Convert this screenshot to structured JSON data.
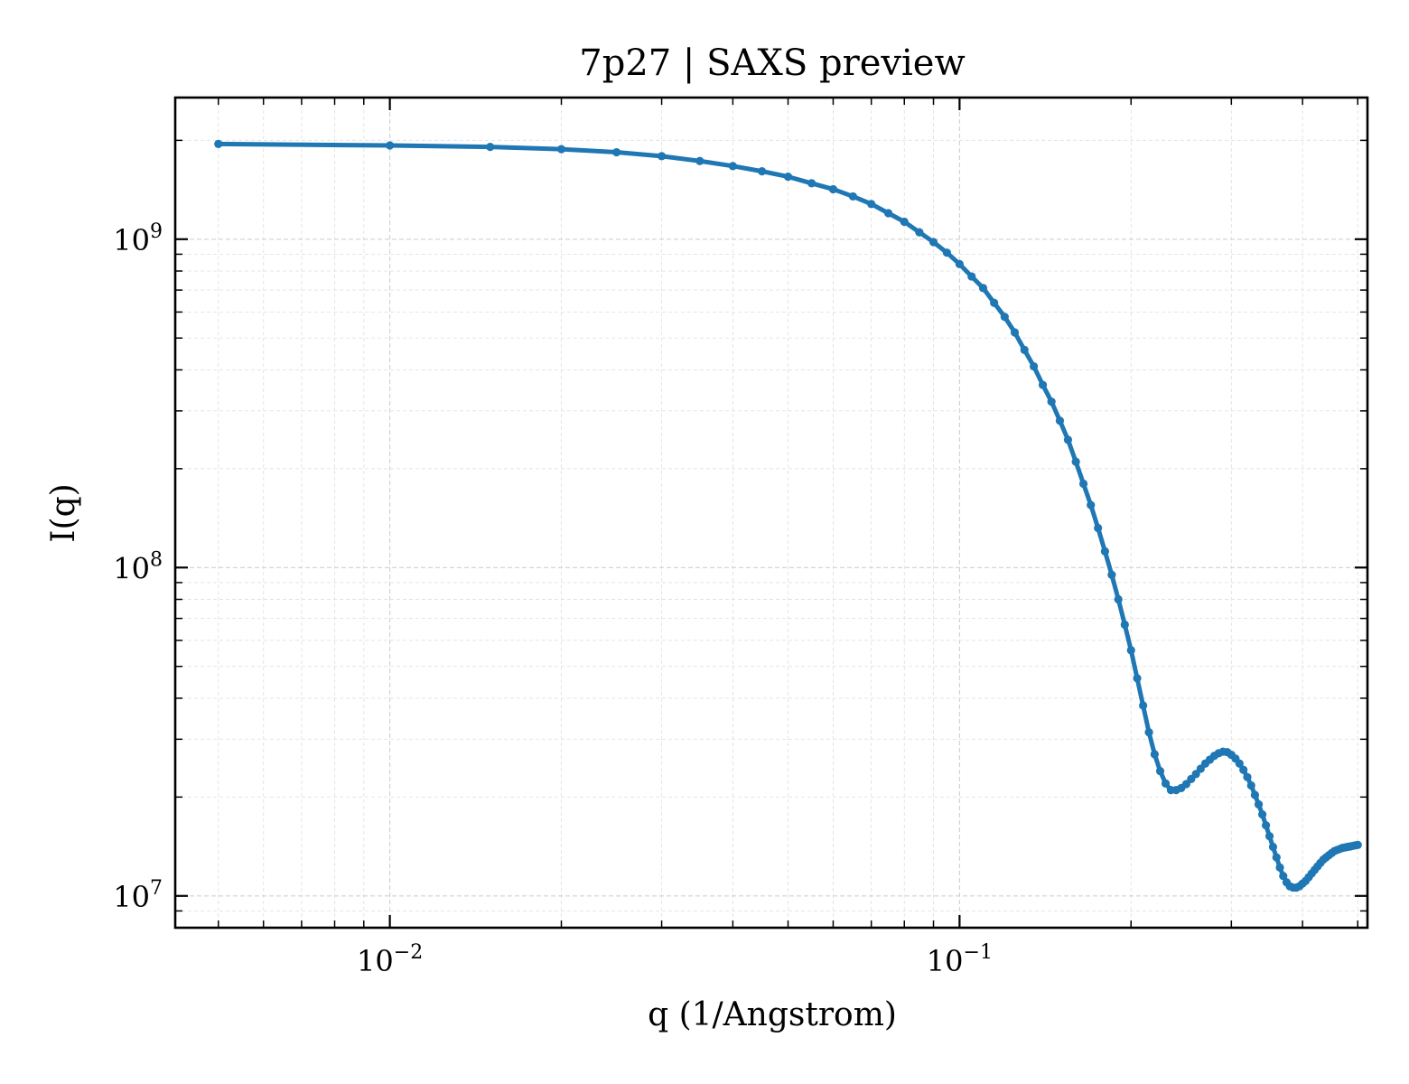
{
  "chart_data": {
    "type": "line",
    "title": "7p27 | SAXS preview",
    "xlabel": "q (1/Angstrom)",
    "ylabel": "I(q)",
    "xscale": "log",
    "yscale": "log",
    "xlim": [
      0.0042,
      0.52
    ],
    "ylim": [
      8000000,
      2700000000
    ],
    "grid": true,
    "x_ticks": [
      {
        "value": 0.01,
        "base": "10",
        "exp": "−2"
      },
      {
        "value": 0.1,
        "base": "10",
        "exp": "−1"
      }
    ],
    "y_ticks": [
      {
        "value": 10000000,
        "base": "10",
        "exp": "7"
      },
      {
        "value": 100000000,
        "base": "10",
        "exp": "8"
      },
      {
        "value": 1000000000,
        "base": "10",
        "exp": "9"
      }
    ],
    "series": [
      {
        "color": "#1f77b4",
        "marker": "circle",
        "x": [
          0.005,
          0.01,
          0.015,
          0.02,
          0.025,
          0.03,
          0.035,
          0.04,
          0.045,
          0.05,
          0.055,
          0.06,
          0.065,
          0.07,
          0.075,
          0.08,
          0.085,
          0.09,
          0.095,
          0.1,
          0.105,
          0.11,
          0.115,
          0.12,
          0.125,
          0.13,
          0.135,
          0.14,
          0.145,
          0.15,
          0.155,
          0.16,
          0.165,
          0.17,
          0.175,
          0.18,
          0.185,
          0.19,
          0.195,
          0.2,
          0.205,
          0.21,
          0.215,
          0.22,
          0.225,
          0.23,
          0.235,
          0.24,
          0.245,
          0.25,
          0.255,
          0.26,
          0.265,
          0.27,
          0.275,
          0.28,
          0.285,
          0.29,
          0.295,
          0.3,
          0.305,
          0.31,
          0.315,
          0.32,
          0.325,
          0.33,
          0.335,
          0.34,
          0.345,
          0.35,
          0.355,
          0.36,
          0.365,
          0.37,
          0.375,
          0.38,
          0.385,
          0.39,
          0.395,
          0.4,
          0.405,
          0.41,
          0.415,
          0.42,
          0.425,
          0.43,
          0.435,
          0.44,
          0.445,
          0.45,
          0.455,
          0.46,
          0.465,
          0.47,
          0.475,
          0.48,
          0.485,
          0.49,
          0.495,
          0.5
        ],
        "y": [
          1950000000,
          1930000000,
          1910000000,
          1880000000,
          1840000000,
          1790000000,
          1730000000,
          1670000000,
          1610000000,
          1550000000,
          1480000000,
          1420000000,
          1350000000,
          1280000000,
          1200000000,
          1130000000,
          1050000000,
          980000000,
          910000000,
          840000000,
          770000000,
          710000000,
          640000000,
          580000000,
          520000000,
          460000000,
          410000000,
          360000000,
          320000000,
          280000000,
          245000000,
          210000000,
          180000000,
          155000000,
          132000000,
          112000000,
          95000000,
          80000000,
          67000000,
          56000000,
          46000000,
          38000000,
          31500000,
          27000000,
          24000000,
          22000000,
          21000000,
          21000000,
          21300000,
          21900000,
          22700000,
          23500000,
          24400000,
          25300000,
          26000000,
          26700000,
          27200000,
          27500000,
          27400000,
          26900000,
          26200000,
          25300000,
          24200000,
          23000000,
          21700000,
          20300000,
          19000000,
          17700000,
          16400000,
          15200000,
          14100000,
          13100000,
          12200000,
          11500000,
          11000000,
          10700000,
          10600000,
          10600000,
          10700000,
          10900000,
          11100000,
          11400000,
          11700000,
          12000000,
          12300000,
          12600000,
          12900000,
          13100000,
          13300000,
          13500000,
          13700000,
          13800000,
          13900000,
          14000000,
          14050000,
          14100000,
          14150000,
          14200000,
          14250000,
          14300000
        ]
      }
    ]
  }
}
